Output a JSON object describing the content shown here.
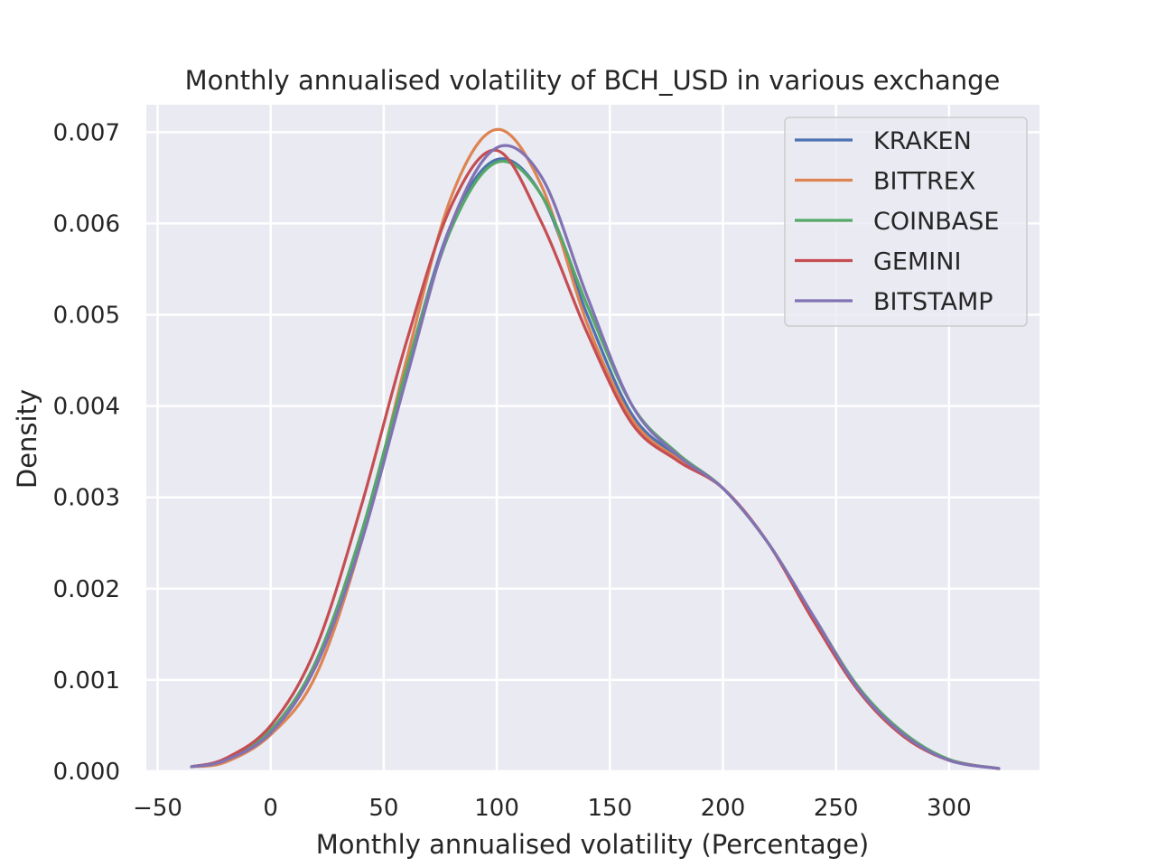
{
  "chart_data": {
    "type": "line",
    "title": "Monthly annualised volatility of BCH_USD in various exchange",
    "xlabel": "Monthly annualised volatility (Percentage)",
    "ylabel": "Density",
    "xlim": [
      -55,
      340
    ],
    "ylim": [
      0,
      0.0073
    ],
    "xticks": [
      -50,
      0,
      50,
      100,
      150,
      200,
      250,
      300
    ],
    "xtick_labels": [
      "−50",
      "0",
      "50",
      "100",
      "150",
      "200",
      "250",
      "300"
    ],
    "yticks": [
      0,
      0.001,
      0.002,
      0.003,
      0.004,
      0.005,
      0.006,
      0.007
    ],
    "ytick_labels": [
      "0.000",
      "0.001",
      "0.002",
      "0.003",
      "0.004",
      "0.005",
      "0.006",
      "0.007"
    ],
    "grid": true,
    "legend_position": "top-right",
    "x": [
      -35,
      -20,
      0,
      20,
      40,
      60,
      80,
      100,
      120,
      140,
      160,
      180,
      200,
      220,
      240,
      260,
      280,
      300,
      322
    ],
    "series": [
      {
        "name": "KRAKEN",
        "color": "#4c72b0",
        "values": [
          5e-05,
          0.00013,
          0.00045,
          0.0012,
          0.0026,
          0.0044,
          0.006,
          0.0067,
          0.0063,
          0.005,
          0.0039,
          0.00345,
          0.0031,
          0.0025,
          0.0017,
          0.0009,
          0.0004,
          0.00012,
          3e-05
        ]
      },
      {
        "name": "BITTREX",
        "color": "#dd8452",
        "values": [
          5e-05,
          0.0001,
          0.0004,
          0.00105,
          0.0025,
          0.0045,
          0.0063,
          0.00703,
          0.0064,
          0.0049,
          0.00385,
          0.00342,
          0.0031,
          0.0025,
          0.00168,
          0.00088,
          0.00038,
          0.00012,
          3e-05
        ]
      },
      {
        "name": "COINBASE",
        "color": "#55a868",
        "values": [
          5e-05,
          0.00013,
          0.00045,
          0.0012,
          0.0026,
          0.0044,
          0.00595,
          0.00667,
          0.0063,
          0.0051,
          0.004,
          0.00348,
          0.0031,
          0.0025,
          0.0017,
          0.00092,
          0.00042,
          0.00013,
          3e-05
        ]
      },
      {
        "name": "GEMINI",
        "color": "#c44e52",
        "values": [
          5e-05,
          0.00014,
          0.0005,
          0.00135,
          0.0029,
          0.0047,
          0.0062,
          0.0068,
          0.006,
          0.0048,
          0.0038,
          0.0034,
          0.0031,
          0.0025,
          0.00165,
          0.00088,
          0.00038,
          0.00012,
          3e-05
        ]
      },
      {
        "name": "BITSTAMP",
        "color": "#8172b3",
        "values": [
          5e-05,
          0.00012,
          0.00042,
          0.00115,
          0.0025,
          0.0043,
          0.006,
          0.00683,
          0.0065,
          0.0052,
          0.004,
          0.00346,
          0.0031,
          0.0025,
          0.0017,
          0.0009,
          0.0004,
          0.00012,
          3e-05
        ]
      }
    ]
  }
}
